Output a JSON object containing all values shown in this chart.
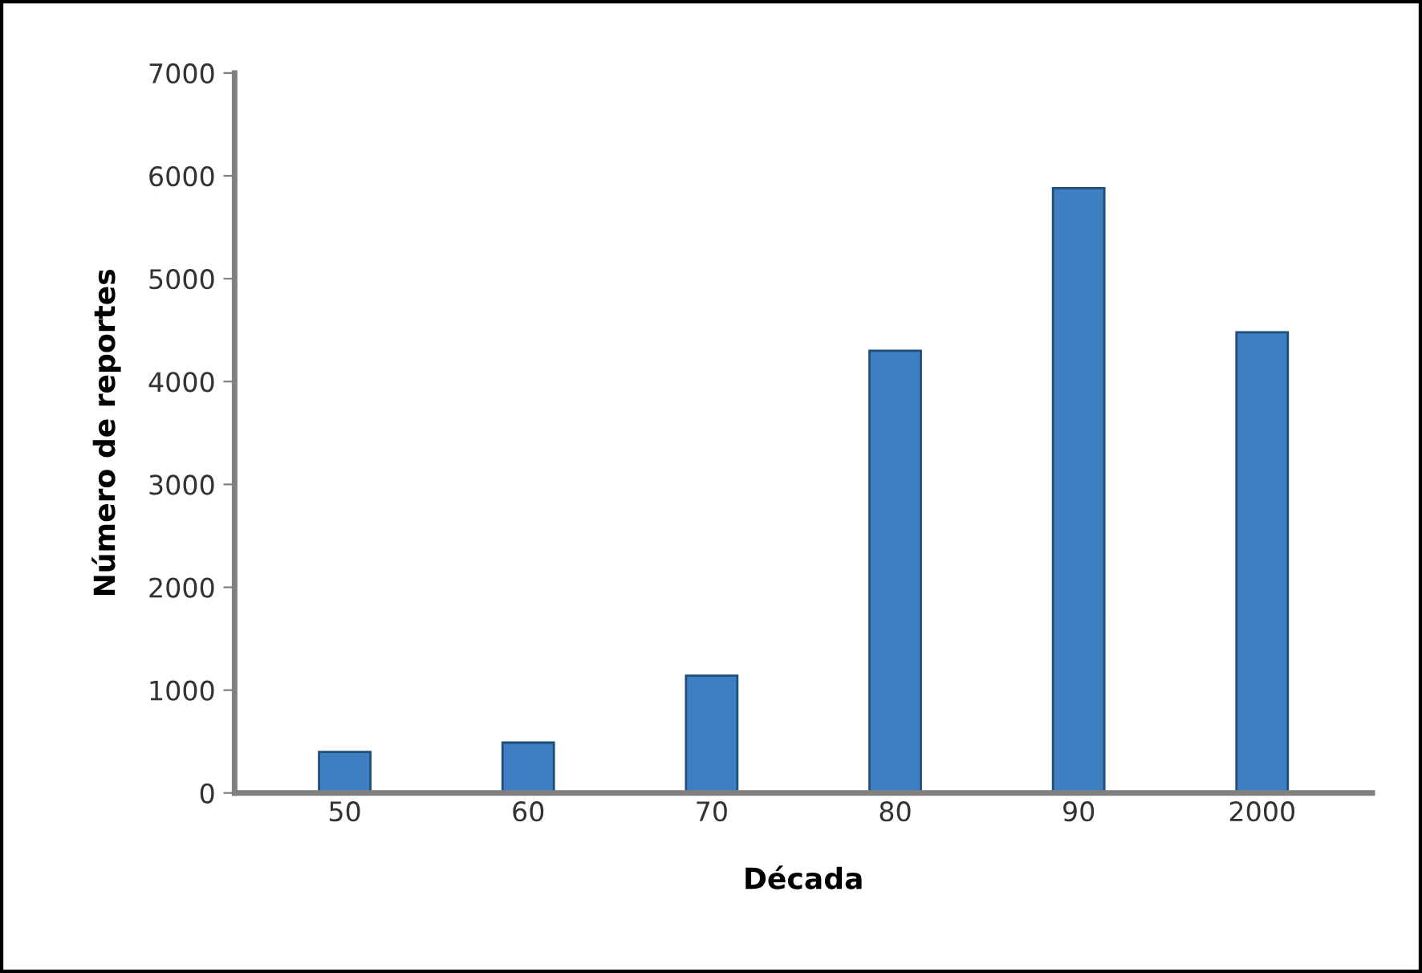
{
  "chart_data": {
    "type": "bar",
    "xlabel": "Década",
    "ylabel": "Número de reportes",
    "categories": [
      "50",
      "60",
      "70",
      "80",
      "90",
      "2000"
    ],
    "values": [
      400,
      490,
      1140,
      4300,
      5880,
      4480
    ],
    "color": "#3d7fc0",
    "ylim": [
      0,
      7000
    ],
    "yticks": [
      0,
      1000,
      2000,
      3000,
      4000,
      5000,
      6000,
      7000
    ],
    "grid": false,
    "legend": false
  }
}
